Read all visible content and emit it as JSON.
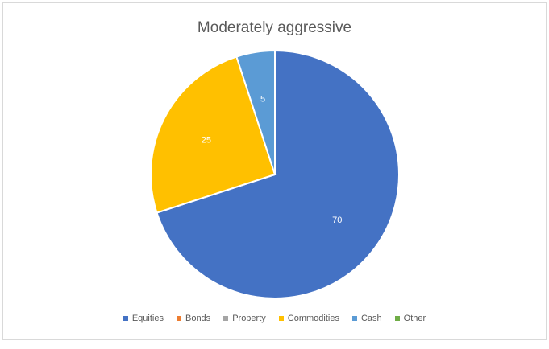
{
  "chart_data": {
    "type": "pie",
    "title": "Moderately aggressive",
    "categories": [
      "Equities",
      "Bonds",
      "Property",
      "Commodities",
      "Cash",
      "Other"
    ],
    "values": [
      70,
      0,
      0,
      25,
      5,
      0
    ],
    "data_labels": [
      "70",
      "",
      "",
      "25",
      "5",
      ""
    ],
    "colors": [
      "#4472c4",
      "#ed7d31",
      "#a5a5a5",
      "#ffc000",
      "#5b9bd5",
      "#70ad47"
    ],
    "legend_position": "bottom"
  }
}
